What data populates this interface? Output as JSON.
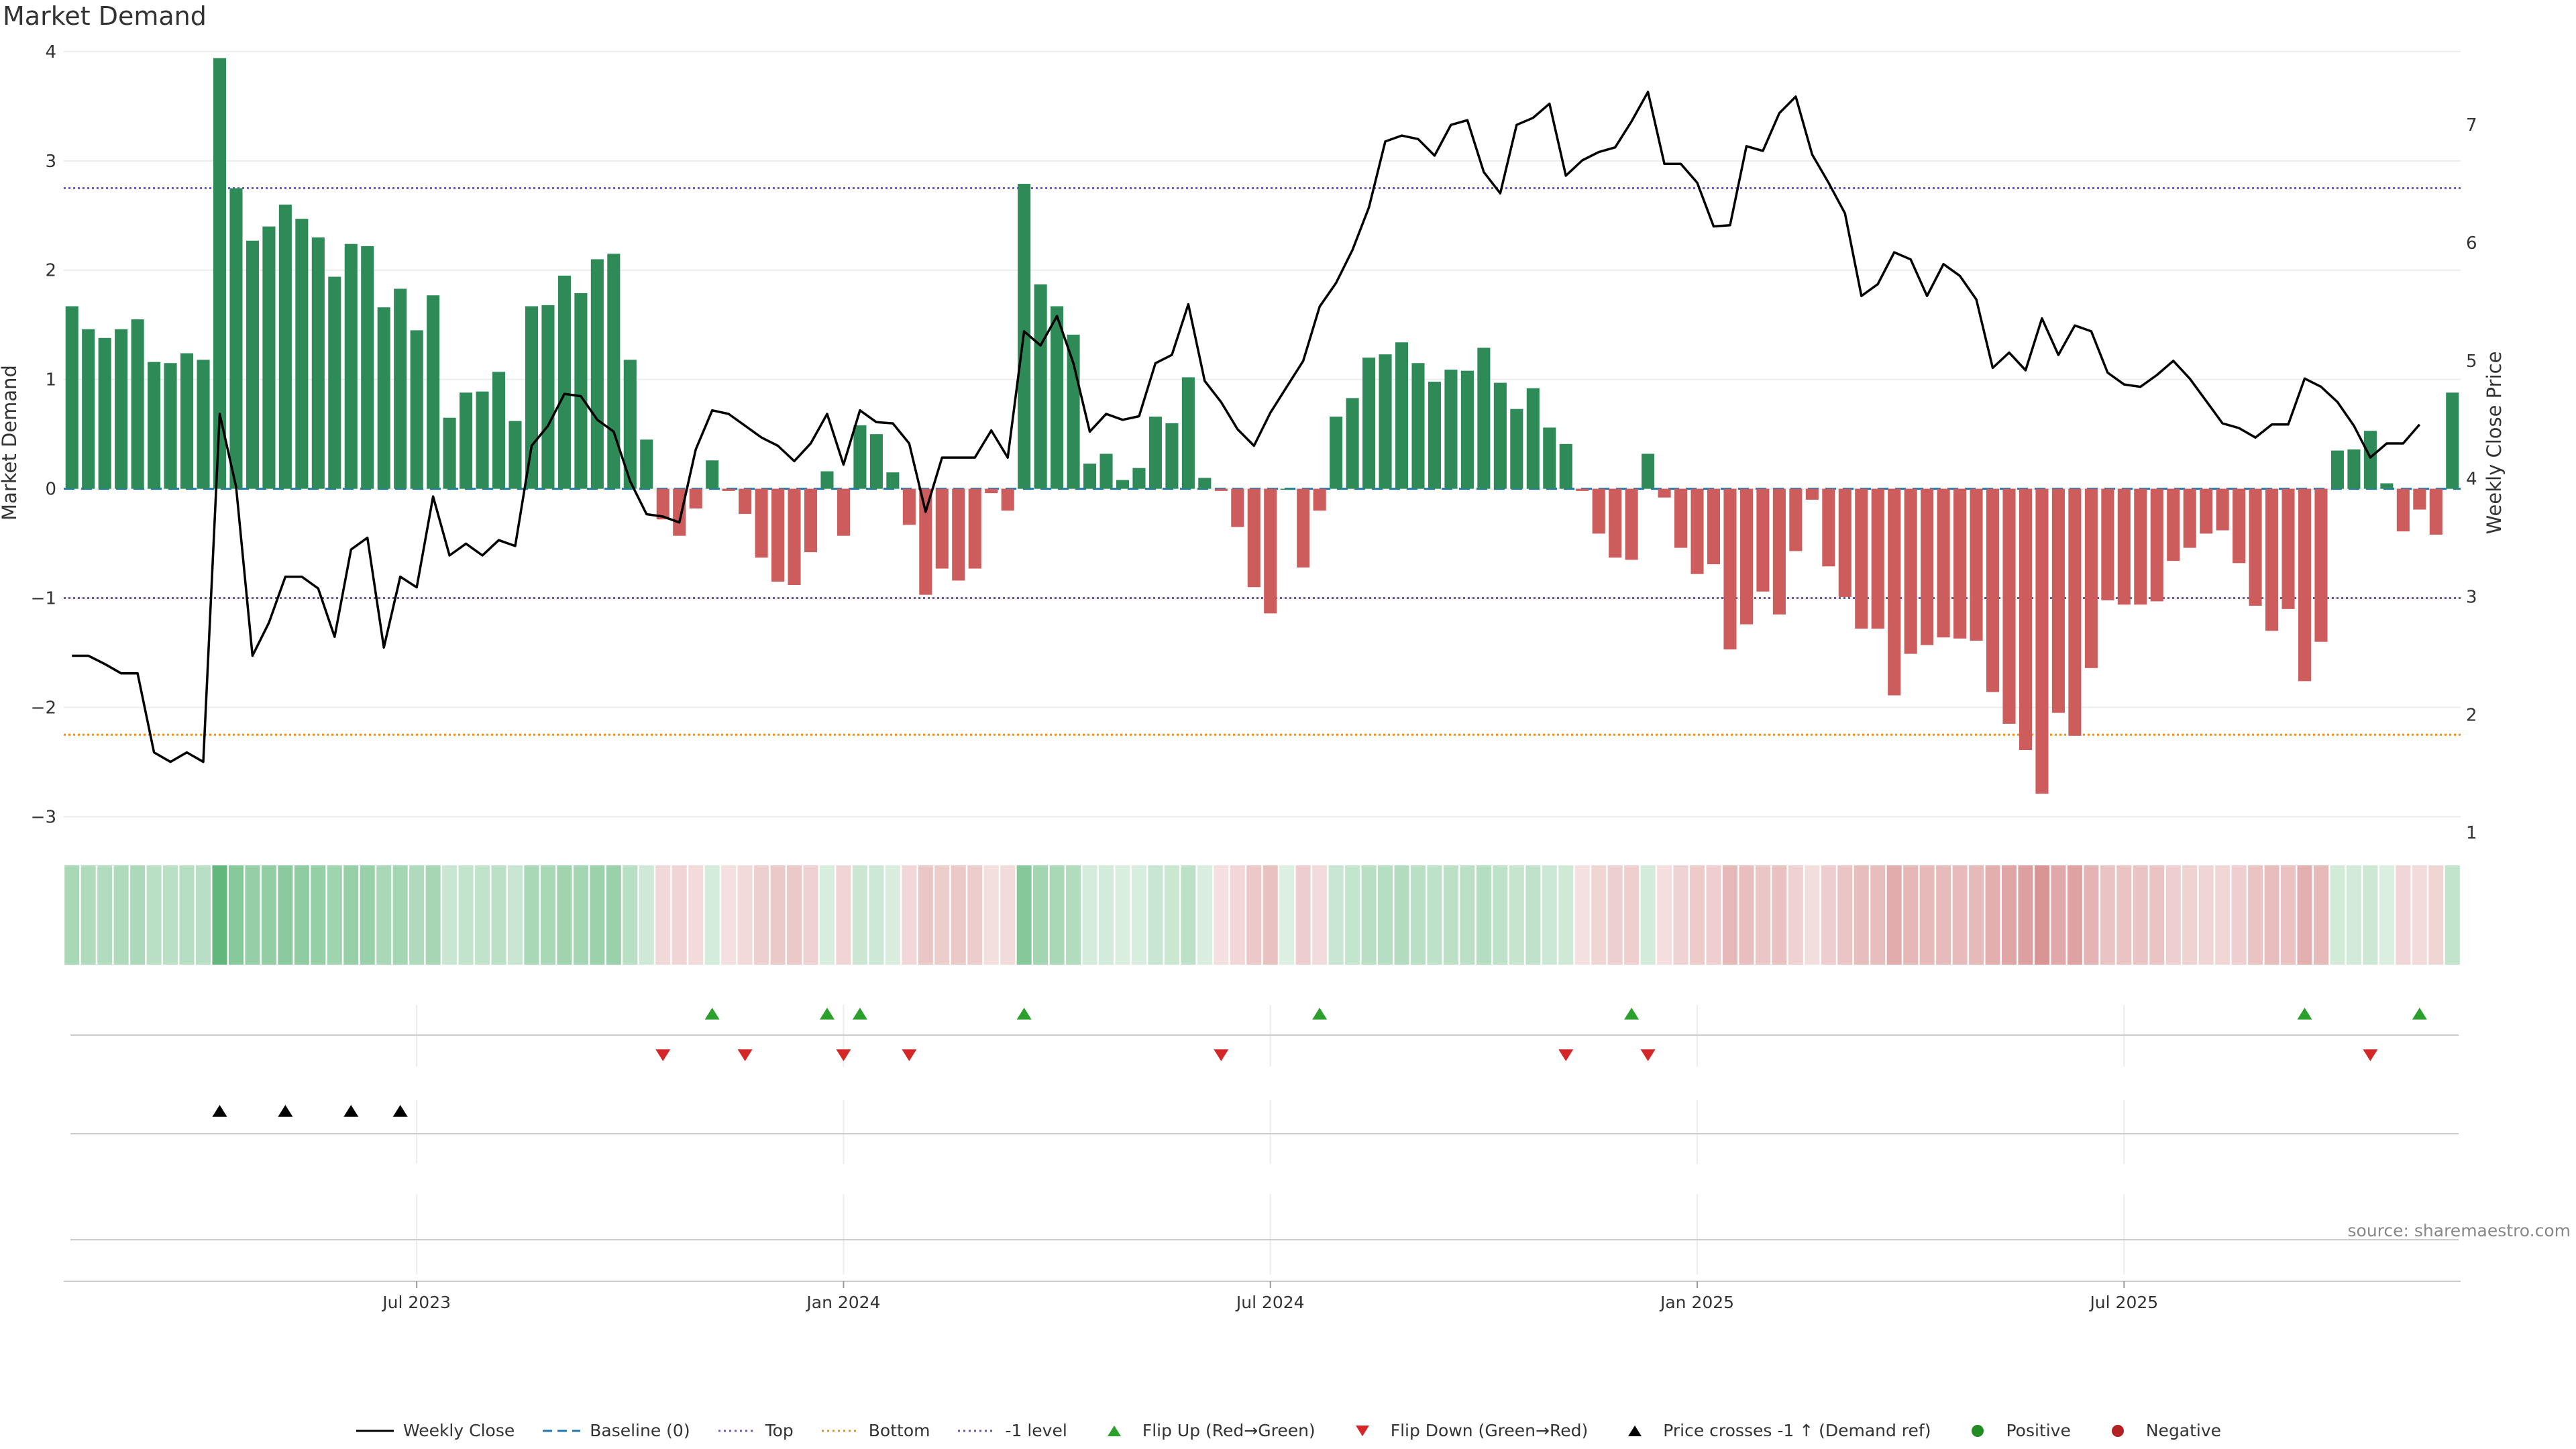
{
  "title": "Market Demand",
  "source_note": "source: sharemaestro.com",
  "colors": {
    "pos_bar": "#2e8b57",
    "neg_bar": "#cd5c5c",
    "price_line": "#000000",
    "baseline": "#1f77b4",
    "top": "#6a5acd",
    "bottom": "#ff8c00",
    "minus1": "#6a5a8d",
    "flip_up": "#2ca02c",
    "flip_down": "#d62728",
    "cross": "#000000",
    "positive_dot": "#228b22",
    "negative_dot": "#b22222"
  },
  "chart_data": {
    "type": "bar",
    "title": "Market Demand",
    "ylabel": "Market Demand",
    "y2label": "Weekly Close Price",
    "ylim": [
      -3.2,
      4.3
    ],
    "y2lim": [
      0.95,
      7.9
    ],
    "yticks": [
      -3,
      -2,
      -1,
      0,
      1,
      2,
      3,
      4
    ],
    "yticklabels": [
      "−3",
      "−2",
      "−1",
      "0",
      "1",
      "2",
      "3",
      "4"
    ],
    "y2ticks": [
      1,
      2,
      3,
      4,
      5,
      6,
      7
    ],
    "y2ticklabels": [
      "1",
      "2",
      "3",
      "4",
      "5",
      "6",
      "7"
    ],
    "xticklabels": [
      "Jul 2023",
      "Jan 2024",
      "Jul 2024",
      "Jan 2025",
      "Jul 2025"
    ],
    "xtick_week_index": [
      21.5,
      47.5,
      73.5,
      99.5,
      125.5
    ],
    "reference_lines": {
      "baseline": 0,
      "top": 2.75,
      "bottom": -2.25,
      "minus_one": -1
    },
    "demand": [
      1.67,
      1.46,
      1.38,
      1.46,
      1.55,
      1.16,
      1.15,
      1.24,
      1.18,
      3.94,
      2.75,
      2.27,
      2.4,
      2.6,
      2.47,
      2.3,
      1.94,
      2.24,
      2.22,
      1.66,
      1.83,
      1.45,
      1.77,
      0.65,
      0.88,
      0.89,
      1.07,
      0.62,
      1.67,
      1.68,
      1.95,
      1.79,
      2.1,
      2.15,
      1.18,
      0.45,
      -0.28,
      -0.43,
      -0.18,
      0.26,
      -0.02,
      -0.23,
      -0.63,
      -0.85,
      -0.88,
      -0.58,
      0.16,
      -0.43,
      0.58,
      0.5,
      0.15,
      -0.33,
      -0.97,
      -0.73,
      -0.84,
      -0.73,
      -0.04,
      -0.2,
      2.79,
      1.87,
      1.67,
      1.41,
      0.23,
      0.32,
      0.08,
      0.19,
      0.66,
      0.6,
      1.02,
      0.1,
      -0.02,
      -0.35,
      -0.9,
      -1.14,
      0.0,
      -0.72,
      -0.2,
      0.66,
      0.83,
      1.2,
      1.23,
      1.34,
      1.15,
      0.98,
      1.09,
      1.08,
      1.29,
      0.97,
      0.73,
      0.92,
      0.56,
      0.41,
      -0.02,
      -0.41,
      -0.63,
      -0.65,
      0.32,
      -0.08,
      -0.54,
      -0.78,
      -0.69,
      -1.47,
      -1.24,
      -0.94,
      -1.15,
      -0.57,
      -0.1,
      -0.71,
      -0.99,
      -1.28,
      -1.28,
      -1.89,
      -1.51,
      -1.43,
      -1.36,
      -1.37,
      -1.39,
      -1.86,
      -2.15,
      -2.39,
      -2.79,
      -2.05,
      -2.26,
      -1.64,
      -1.02,
      -1.06,
      -1.06,
      -1.03,
      -0.66,
      -0.54,
      -0.41,
      -0.38,
      -0.68,
      -1.07,
      -1.3,
      -1.1,
      -1.76,
      -1.4,
      0.35,
      0.36,
      0.53,
      0.05,
      -0.39,
      -0.19,
      -0.42,
      0.88
    ],
    "price": [
      2.5,
      2.5,
      2.43,
      2.35,
      2.35,
      1.68,
      1.6,
      1.68,
      1.6,
      4.55,
      3.93,
      2.5,
      2.78,
      3.17,
      3.17,
      3.07,
      2.66,
      3.4,
      3.5,
      2.57,
      3.17,
      3.08,
      3.85,
      3.35,
      3.45,
      3.35,
      3.48,
      3.43,
      4.28,
      4.45,
      4.72,
      4.7,
      4.5,
      4.4,
      3.98,
      3.7,
      3.68,
      3.63,
      4.25,
      4.58,
      4.55,
      4.45,
      4.35,
      4.28,
      4.15,
      4.3,
      4.55,
      4.12,
      4.58,
      4.48,
      4.47,
      4.3,
      3.72,
      4.18,
      4.18,
      4.18,
      4.41,
      4.18,
      5.25,
      5.13,
      5.38,
      4.98,
      4.4,
      4.55,
      4.5,
      4.53,
      4.98,
      5.05,
      5.48,
      4.83,
      4.65,
      4.42,
      4.28,
      4.56,
      4.78,
      5.0,
      5.46,
      5.66,
      5.94,
      6.3,
      6.86,
      6.91,
      6.88,
      6.74,
      7.0,
      7.04,
      6.6,
      6.42,
      7.0,
      7.06,
      7.18,
      6.57,
      6.7,
      6.77,
      6.81,
      7.03,
      7.28,
      6.67,
      6.67,
      6.51,
      6.14,
      6.15,
      6.82,
      6.78,
      7.1,
      7.24,
      6.75,
      6.51,
      6.25,
      5.55,
      5.65,
      5.92,
      5.86,
      5.55,
      5.82,
      5.72,
      5.52,
      4.94,
      5.07,
      4.92,
      5.36,
      5.05,
      5.3,
      5.25,
      4.9,
      4.8,
      4.78,
      4.88,
      5.0,
      4.85,
      4.66,
      4.47,
      4.43,
      4.35,
      4.46,
      4.46,
      4.85,
      4.78,
      4.65,
      4.45,
      4.18,
      4.3,
      4.3,
      4.46
    ],
    "flip_up_idx": [
      39,
      46,
      48,
      58,
      76,
      95,
      136,
      143
    ],
    "flip_down_idx": [
      36,
      41,
      47,
      51,
      70,
      91,
      96,
      140
    ],
    "cross_idx": [
      9,
      13,
      17,
      20
    ]
  },
  "legend": [
    {
      "key": "weekly_close",
      "label": "Weekly Close",
      "symbol": "line"
    },
    {
      "key": "baseline",
      "label": "Baseline (0)",
      "symbol": "dash"
    },
    {
      "key": "top",
      "label": "Top",
      "symbol": "dots"
    },
    {
      "key": "bottom",
      "label": "Bottom",
      "symbol": "dots"
    },
    {
      "key": "minus1",
      "label": "-1 level",
      "symbol": "dots"
    },
    {
      "key": "flip_up",
      "label": "Flip Up (Red→Green)",
      "symbol": "tri-up"
    },
    {
      "key": "flip_down",
      "label": "Flip Down (Green→Red)",
      "symbol": "tri-down"
    },
    {
      "key": "cross",
      "label": "Price crosses -1 ↑ (Demand ref)",
      "symbol": "tri-up"
    },
    {
      "key": "positive_dot",
      "label": "Positive",
      "symbol": "dot"
    },
    {
      "key": "negative_dot",
      "label": "Negative",
      "symbol": "dot"
    }
  ]
}
